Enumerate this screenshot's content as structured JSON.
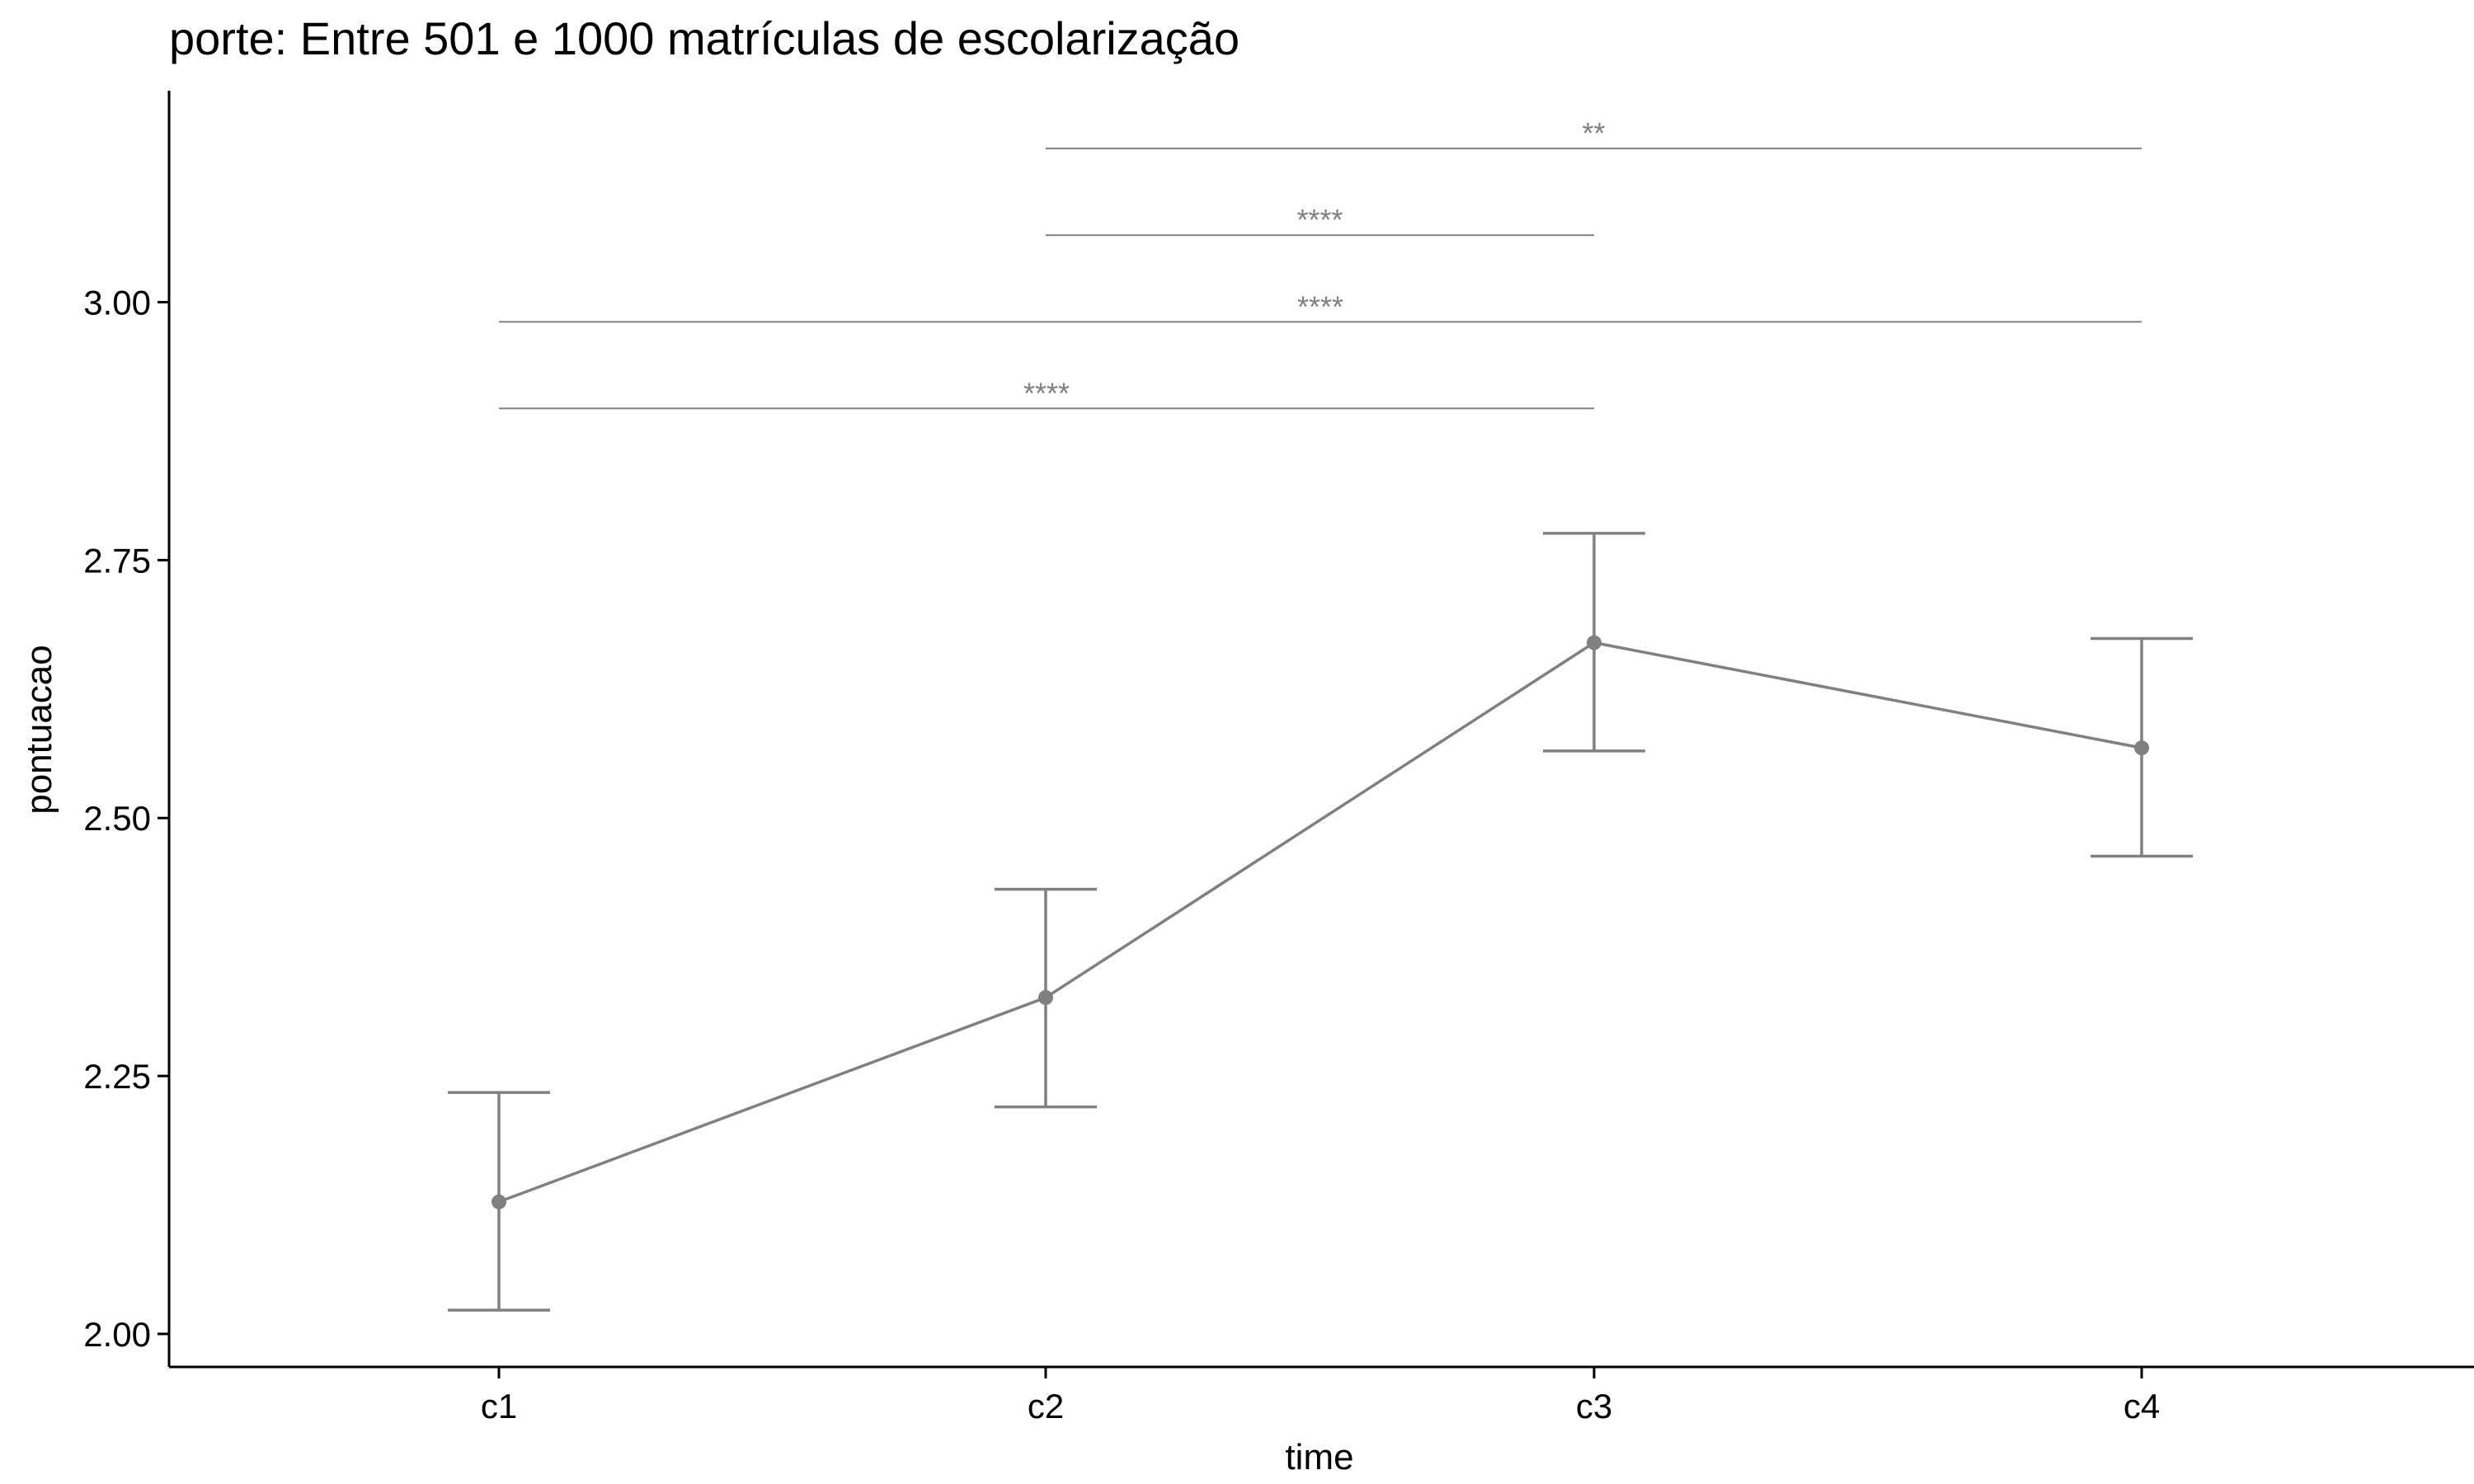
{
  "chart_data": {
    "type": "line",
    "title": "porte: Entre 501 e 1000 matrículas de escolarização",
    "xlabel": "time",
    "ylabel": "pontuacao",
    "categories": [
      "c1",
      "c2",
      "c3",
      "c4"
    ],
    "series": [
      {
        "values": [
          2.128,
          2.326,
          2.67,
          2.568
        ],
        "error_low": [
          2.023,
          2.22,
          2.565,
          2.463
        ],
        "error_high": [
          2.234,
          2.431,
          2.776,
          2.674
        ],
        "color": "#808080"
      }
    ],
    "ylim": [
      1.968,
      3.205
    ],
    "yticks": [
      2.0,
      2.25,
      2.5,
      2.75,
      3.0
    ],
    "ytick_labels": [
      "2.00",
      "2.25",
      "2.50",
      "2.75",
      "3.00"
    ],
    "grid": false,
    "significance": [
      {
        "from": "c1",
        "to": "c3",
        "y": 2.897,
        "label": "****"
      },
      {
        "from": "c1",
        "to": "c4",
        "y": 2.981,
        "label": "****"
      },
      {
        "from": "c2",
        "to": "c3",
        "y": 3.065,
        "label": "****"
      },
      {
        "from": "c2",
        "to": "c4",
        "y": 3.149,
        "label": "**"
      }
    ]
  }
}
